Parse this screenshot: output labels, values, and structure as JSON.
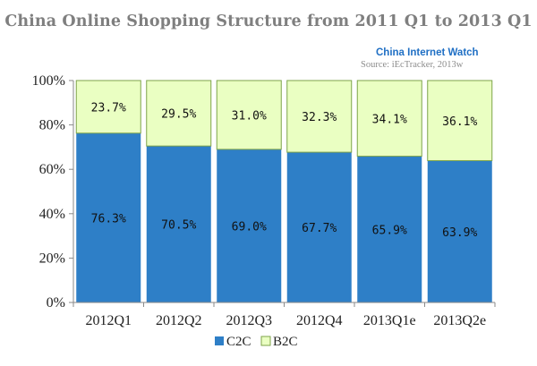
{
  "title": "China Online Shopping Structure from 2011 Q1 to 2013 Q1",
  "watermark": "China Internet Watch",
  "source": "Source: iEcTracker, 2013w",
  "chart_data": {
    "type": "bar",
    "stacked": true,
    "categories": [
      "2012Q1",
      "2012Q2",
      "2012Q3",
      "2012Q4",
      "2013Q1e",
      "2013Q2e"
    ],
    "series": [
      {
        "name": "C2C",
        "values": [
          76.3,
          70.5,
          69.0,
          67.7,
          65.9,
          63.9
        ],
        "labels": [
          "76.3%",
          "70.5%",
          "69.0%",
          "67.7%",
          "65.9%",
          "63.9%"
        ],
        "color": "#2e7fc7"
      },
      {
        "name": "B2C",
        "values": [
          23.7,
          29.5,
          31.0,
          32.3,
          34.1,
          36.1
        ],
        "labels": [
          "23.7%",
          "29.5%",
          "31.0%",
          "32.3%",
          "34.1%",
          "36.1%"
        ],
        "color": "#eaffc2"
      }
    ],
    "yticks": [
      "0%",
      "20%",
      "40%",
      "60%",
      "80%",
      "100%"
    ],
    "ylim": [
      0,
      100
    ],
    "legend_position": "bottom",
    "grid": false
  }
}
